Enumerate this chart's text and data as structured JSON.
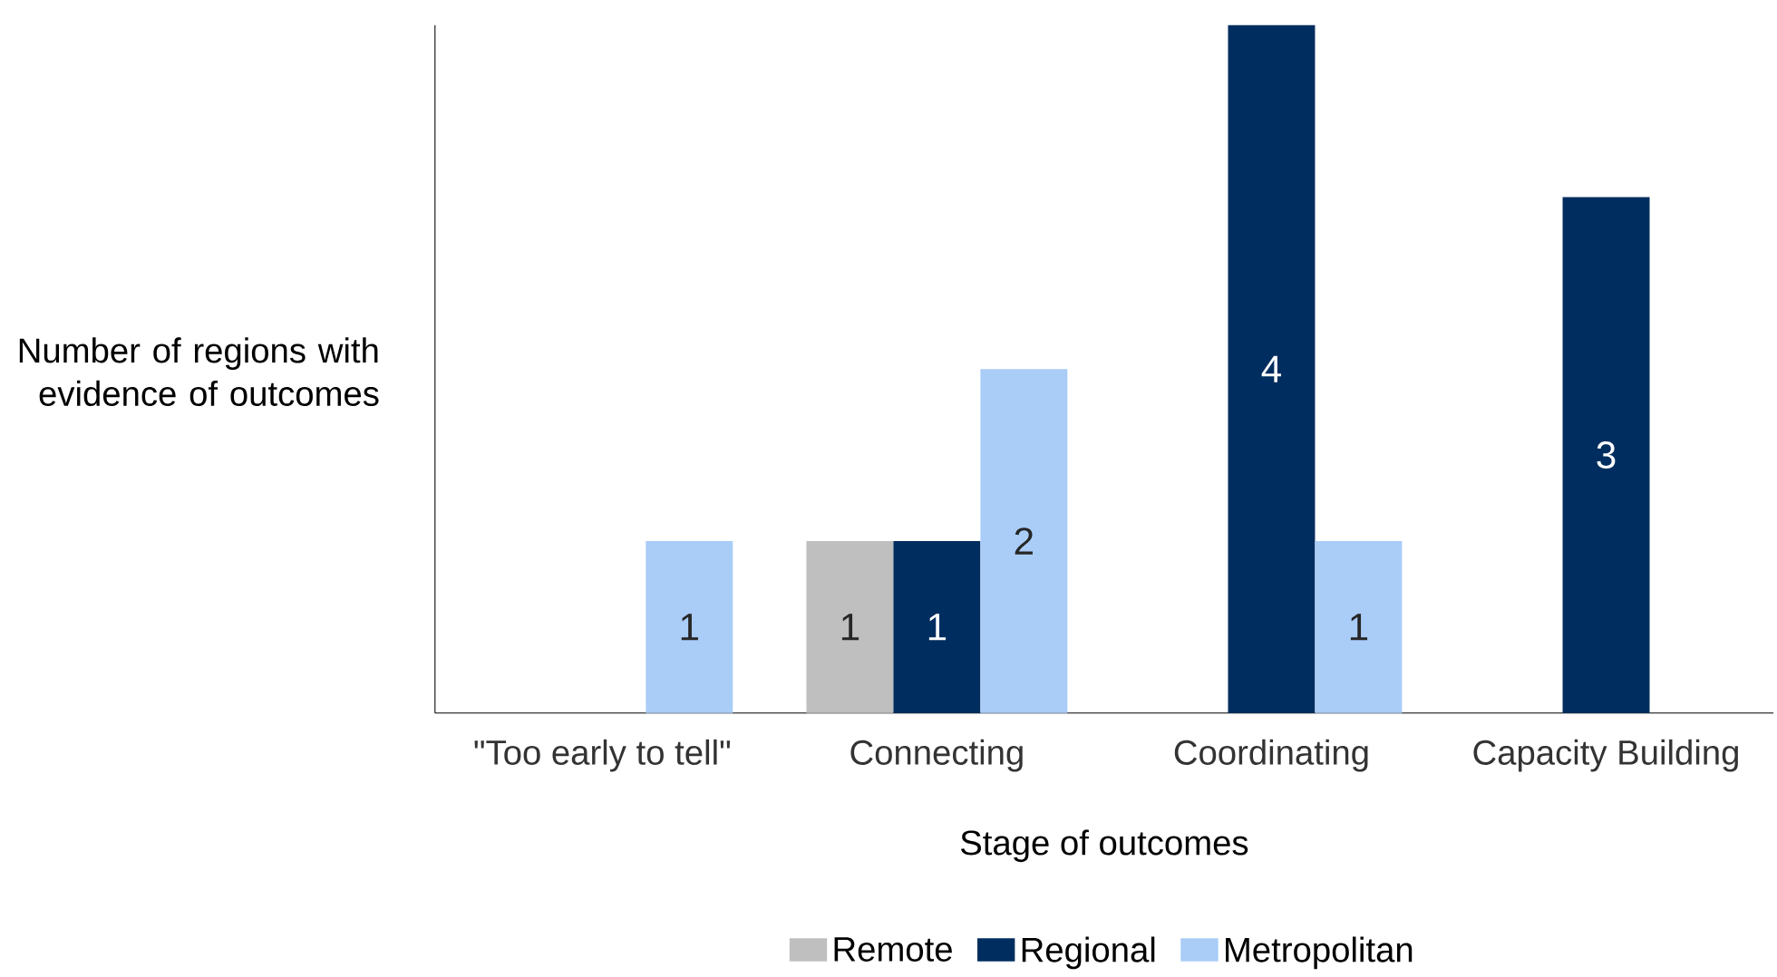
{
  "chart_data": {
    "type": "bar",
    "xlabel": "Stage of outcomes",
    "ylabel": "Number of regions with evidence of outcomes",
    "categories": [
      "\"Too early to tell\"",
      "Connecting",
      "Coordinating",
      "Capacity Building"
    ],
    "series": [
      {
        "name": "Remote",
        "color": "#bfbfbf",
        "values": [
          null,
          1,
          null,
          null
        ]
      },
      {
        "name": "Regional",
        "color": "#002d5f",
        "values": [
          null,
          1,
          4,
          3
        ]
      },
      {
        "name": "Metropolitan",
        "color": "#a9cdf7",
        "values": [
          1,
          2,
          1,
          null
        ]
      }
    ],
    "ylim": [
      0,
      4
    ],
    "tick_labels": "x",
    "data_labels": true,
    "legend": "bottom"
  }
}
